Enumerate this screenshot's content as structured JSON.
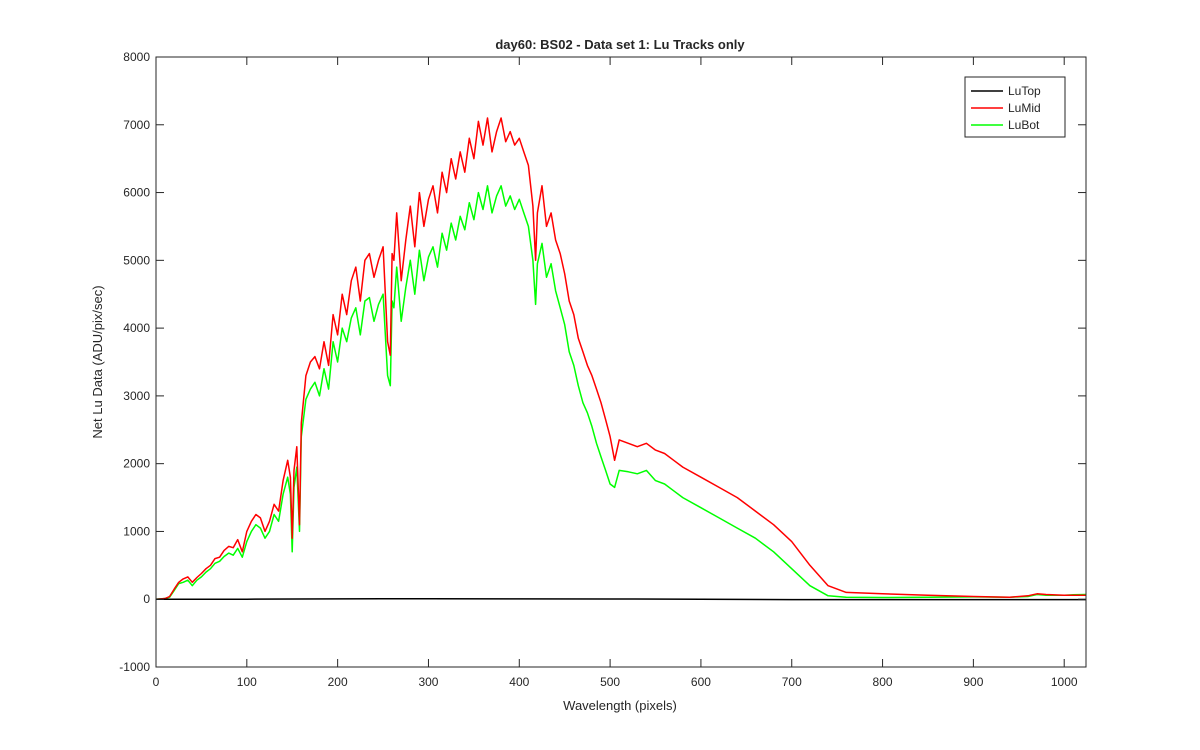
{
  "chart_data": {
    "type": "line",
    "title": "day60: BS02 - Data set 1: Lu Tracks only",
    "xlabel": "Wavelength (pixels)",
    "ylabel": "Net Lu Data (ADU/pix/sec)",
    "xlim": [
      0,
      1024
    ],
    "ylim": [
      -1000,
      8000
    ],
    "xticks": [
      0,
      100,
      200,
      300,
      400,
      500,
      600,
      700,
      800,
      900,
      1000
    ],
    "yticks": [
      -1000,
      0,
      1000,
      2000,
      3000,
      4000,
      5000,
      6000,
      7000,
      8000
    ],
    "grid": false,
    "legend_position": "top-right",
    "series": [
      {
        "name": "LuTop",
        "color": "#000000",
        "x": [
          0,
          100,
          200,
          300,
          400,
          500,
          600,
          700,
          800,
          900,
          1000,
          1024
        ],
        "y": [
          0,
          0,
          5,
          8,
          5,
          3,
          0,
          -5,
          -5,
          -5,
          -5,
          -5
        ]
      },
      {
        "name": "LuMid",
        "color": "#ff0000",
        "x": [
          0,
          10,
          15,
          20,
          25,
          30,
          35,
          40,
          45,
          50,
          55,
          60,
          65,
          70,
          75,
          80,
          85,
          90,
          95,
          100,
          105,
          110,
          115,
          120,
          125,
          130,
          135,
          140,
          145,
          148,
          150,
          152,
          155,
          158,
          160,
          165,
          170,
          175,
          180,
          185,
          190,
          195,
          200,
          205,
          210,
          215,
          220,
          225,
          230,
          235,
          240,
          245,
          250,
          255,
          258,
          260,
          262,
          265,
          270,
          275,
          280,
          285,
          290,
          295,
          300,
          305,
          310,
          315,
          320,
          325,
          330,
          335,
          340,
          345,
          350,
          355,
          360,
          365,
          370,
          375,
          380,
          385,
          390,
          395,
          400,
          405,
          410,
          415,
          418,
          420,
          425,
          430,
          435,
          440,
          445,
          450,
          455,
          460,
          465,
          470,
          475,
          480,
          485,
          490,
          495,
          500,
          505,
          510,
          520,
          530,
          540,
          550,
          560,
          570,
          580,
          600,
          620,
          640,
          660,
          680,
          700,
          720,
          740,
          760,
          800,
          850,
          900,
          940,
          960,
          970,
          980,
          1000,
          1010,
          1024
        ],
        "y": [
          0,
          10,
          40,
          150,
          250,
          300,
          330,
          250,
          320,
          380,
          450,
          500,
          600,
          620,
          720,
          780,
          760,
          880,
          700,
          1000,
          1150,
          1250,
          1200,
          1000,
          1150,
          1400,
          1300,
          1750,
          2050,
          1800,
          900,
          1900,
          2250,
          1100,
          2600,
          3300,
          3500,
          3580,
          3400,
          3800,
          3450,
          4200,
          3900,
          4500,
          4200,
          4700,
          4900,
          4400,
          5000,
          5100,
          4750,
          5000,
          5200,
          3800,
          3600,
          5100,
          5000,
          5700,
          4700,
          5300,
          5800,
          5200,
          6000,
          5500,
          5900,
          6100,
          5700,
          6300,
          6000,
          6500,
          6200,
          6600,
          6300,
          6800,
          6500,
          7050,
          6700,
          7100,
          6600,
          6900,
          7100,
          6750,
          6900,
          6700,
          6800,
          6600,
          6400,
          5800,
          5000,
          5700,
          6100,
          5500,
          5700,
          5300,
          5100,
          4800,
          4400,
          4200,
          3850,
          3650,
          3450,
          3300,
          3100,
          2900,
          2650,
          2400,
          2050,
          2350,
          2300,
          2250,
          2300,
          2200,
          2150,
          2050,
          1950,
          1800,
          1650,
          1500,
          1300,
          1100,
          850,
          500,
          200,
          100,
          80,
          60,
          40,
          30,
          50,
          80,
          70,
          60,
          60,
          60
        ]
      },
      {
        "name": "LuBot",
        "color": "#00ff00",
        "x": [
          0,
          10,
          15,
          20,
          25,
          30,
          35,
          40,
          45,
          50,
          55,
          60,
          65,
          70,
          75,
          80,
          85,
          90,
          95,
          100,
          105,
          110,
          115,
          120,
          125,
          130,
          135,
          140,
          145,
          148,
          150,
          152,
          155,
          158,
          160,
          165,
          170,
          175,
          180,
          185,
          190,
          195,
          200,
          205,
          210,
          215,
          220,
          225,
          230,
          235,
          240,
          245,
          250,
          255,
          258,
          260,
          262,
          265,
          270,
          275,
          280,
          285,
          290,
          295,
          300,
          305,
          310,
          315,
          320,
          325,
          330,
          335,
          340,
          345,
          350,
          355,
          360,
          365,
          370,
          375,
          380,
          385,
          390,
          395,
          400,
          405,
          410,
          415,
          418,
          420,
          425,
          430,
          435,
          440,
          445,
          450,
          455,
          460,
          465,
          470,
          475,
          480,
          485,
          490,
          495,
          500,
          505,
          510,
          520,
          530,
          540,
          550,
          560,
          570,
          580,
          600,
          620,
          640,
          660,
          680,
          700,
          720,
          740,
          760,
          800,
          850,
          900,
          940,
          960,
          970,
          980,
          1000,
          1010,
          1024
        ],
        "y": [
          0,
          10,
          30,
          130,
          230,
          250,
          280,
          200,
          280,
          330,
          400,
          450,
          530,
          560,
          630,
          680,
          650,
          750,
          620,
          850,
          1000,
          1100,
          1050,
          900,
          1000,
          1250,
          1150,
          1550,
          1800,
          1550,
          700,
          1650,
          1950,
          1000,
          2400,
          2950,
          3100,
          3200,
          3000,
          3400,
          3100,
          3800,
          3500,
          4000,
          3800,
          4150,
          4300,
          3900,
          4400,
          4450,
          4100,
          4350,
          4500,
          3300,
          3150,
          4400,
          4300,
          4900,
          4100,
          4600,
          5000,
          4500,
          5150,
          4700,
          5050,
          5200,
          4900,
          5400,
          5150,
          5550,
          5300,
          5650,
          5450,
          5850,
          5600,
          6000,
          5750,
          6100,
          5700,
          5950,
          6100,
          5800,
          5950,
          5750,
          5900,
          5700,
          5500,
          5000,
          4350,
          4950,
          5250,
          4750,
          4950,
          4550,
          4300,
          4050,
          3650,
          3450,
          3150,
          2900,
          2750,
          2550,
          2300,
          2100,
          1900,
          1700,
          1650,
          1900,
          1880,
          1850,
          1900,
          1750,
          1700,
          1600,
          1500,
          1350,
          1200,
          1050,
          900,
          700,
          450,
          200,
          50,
          30,
          25,
          30,
          35,
          30,
          40,
          70,
          60,
          60,
          65,
          70
        ]
      }
    ]
  }
}
